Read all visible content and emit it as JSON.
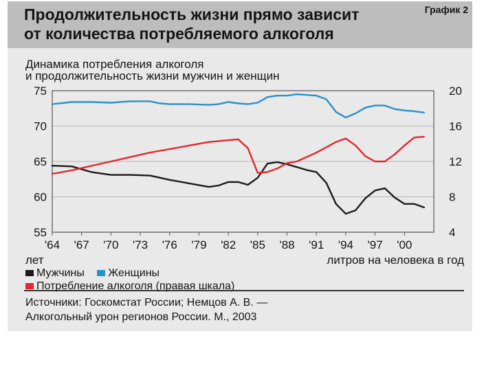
{
  "header": {
    "title_line1": "Продолжительность жизни прямо зависит",
    "title_line2": "от количества потребляемого алкоголя",
    "chart_label": "График 2"
  },
  "subtitle": {
    "line1": "Динамика потребления алкоголя",
    "line2": "и продолжительность жизни мужчин и женщин"
  },
  "axis_units": {
    "left": "лет",
    "right": "литров на человека в год"
  },
  "legend": {
    "men": "Мужчины",
    "women": "Женщины",
    "alcohol": "Потребление алкоголя (правая шкала)"
  },
  "sources": {
    "line1": "Источники: Госкомстат России; Немцов А. В. —",
    "line2": "Алкогольный урон регионов России. М., 2003"
  },
  "colors": {
    "men": "#1a1a1a",
    "women": "#2a90c8",
    "alcohol": "#e0282e"
  },
  "chart_data": {
    "type": "line",
    "title": "Динамика потребления алкоголя и продолжительность жизни мужчин и женщин",
    "xlim": [
      1964,
      2003
    ],
    "ylim_left": [
      55,
      75
    ],
    "ylim_right": [
      4,
      20
    ],
    "x_ticks": [
      "'64",
      "'67",
      "'70",
      "'73",
      "'76",
      "'79",
      "'82",
      "'85",
      "'88",
      "'91",
      "'94",
      "'97",
      "'00"
    ],
    "y_ticks_left": [
      "75",
      "70",
      "65",
      "60",
      "55"
    ],
    "y_ticks_right": [
      "20",
      "16",
      "12",
      "8",
      "4"
    ],
    "series": [
      {
        "name": "Женщины",
        "axis": "left",
        "x": [
          1964,
          1966,
          1968,
          1970,
          1972,
          1974,
          1975,
          1976,
          1978,
          1980,
          1981,
          1982,
          1983,
          1984,
          1985,
          1986,
          1987,
          1988,
          1989,
          1990,
          1991,
          1992,
          1993,
          1994,
          1995,
          1996,
          1997,
          1998,
          1999,
          2000,
          2001,
          2002
        ],
        "y": [
          73.1,
          73.4,
          73.4,
          73.3,
          73.5,
          73.5,
          73.2,
          73.1,
          73.1,
          73.0,
          73.1,
          73.4,
          73.2,
          73.1,
          73.3,
          74.1,
          74.3,
          74.3,
          74.5,
          74.4,
          74.3,
          73.8,
          72.0,
          71.2,
          71.8,
          72.6,
          72.9,
          72.9,
          72.4,
          72.2,
          72.1,
          71.9
        ]
      },
      {
        "name": "Мужчины",
        "axis": "left",
        "x": [
          1964,
          1966,
          1968,
          1970,
          1972,
          1974,
          1976,
          1978,
          1980,
          1981,
          1982,
          1983,
          1984,
          1985,
          1986,
          1987,
          1988,
          1989,
          1990,
          1991,
          1992,
          1993,
          1994,
          1995,
          1996,
          1997,
          1998,
          1999,
          2000,
          2001,
          2002
        ],
        "y": [
          64.4,
          64.3,
          63.5,
          63.1,
          63.1,
          63.0,
          62.4,
          61.9,
          61.4,
          61.6,
          62.1,
          62.1,
          61.7,
          62.7,
          64.7,
          64.9,
          64.6,
          64.2,
          63.8,
          63.5,
          62.0,
          59.0,
          57.6,
          58.1,
          59.8,
          60.9,
          61.2,
          59.9,
          59.0,
          59.0,
          58.5
        ]
      },
      {
        "name": "Потребление алкоголя (правая шкала)",
        "axis": "right",
        "x": [
          1964,
          1966,
          1968,
          1970,
          1972,
          1974,
          1976,
          1978,
          1980,
          1982,
          1983,
          1984,
          1985,
          1986,
          1987,
          1988,
          1989,
          1990,
          1991,
          1992,
          1993,
          1994,
          1995,
          1996,
          1997,
          1998,
          1999,
          2000,
          2001,
          2002
        ],
        "y": [
          10.6,
          11.0,
          11.5,
          12.0,
          12.5,
          13.0,
          13.4,
          13.8,
          14.2,
          14.4,
          14.5,
          13.5,
          10.7,
          10.8,
          11.2,
          11.8,
          12.0,
          12.5,
          13.0,
          13.6,
          14.2,
          14.6,
          13.8,
          12.6,
          12.0,
          12.0,
          12.8,
          13.8,
          14.7,
          14.8
        ]
      }
    ]
  }
}
